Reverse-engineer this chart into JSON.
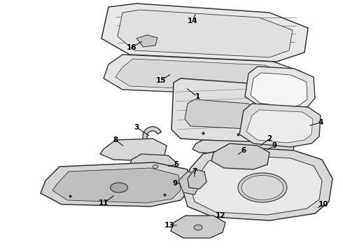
{
  "background_color": "#ffffff",
  "line_color": "#333333",
  "label_color": "#000000",
  "figsize": [
    4.9,
    3.6
  ],
  "dpi": 100
}
